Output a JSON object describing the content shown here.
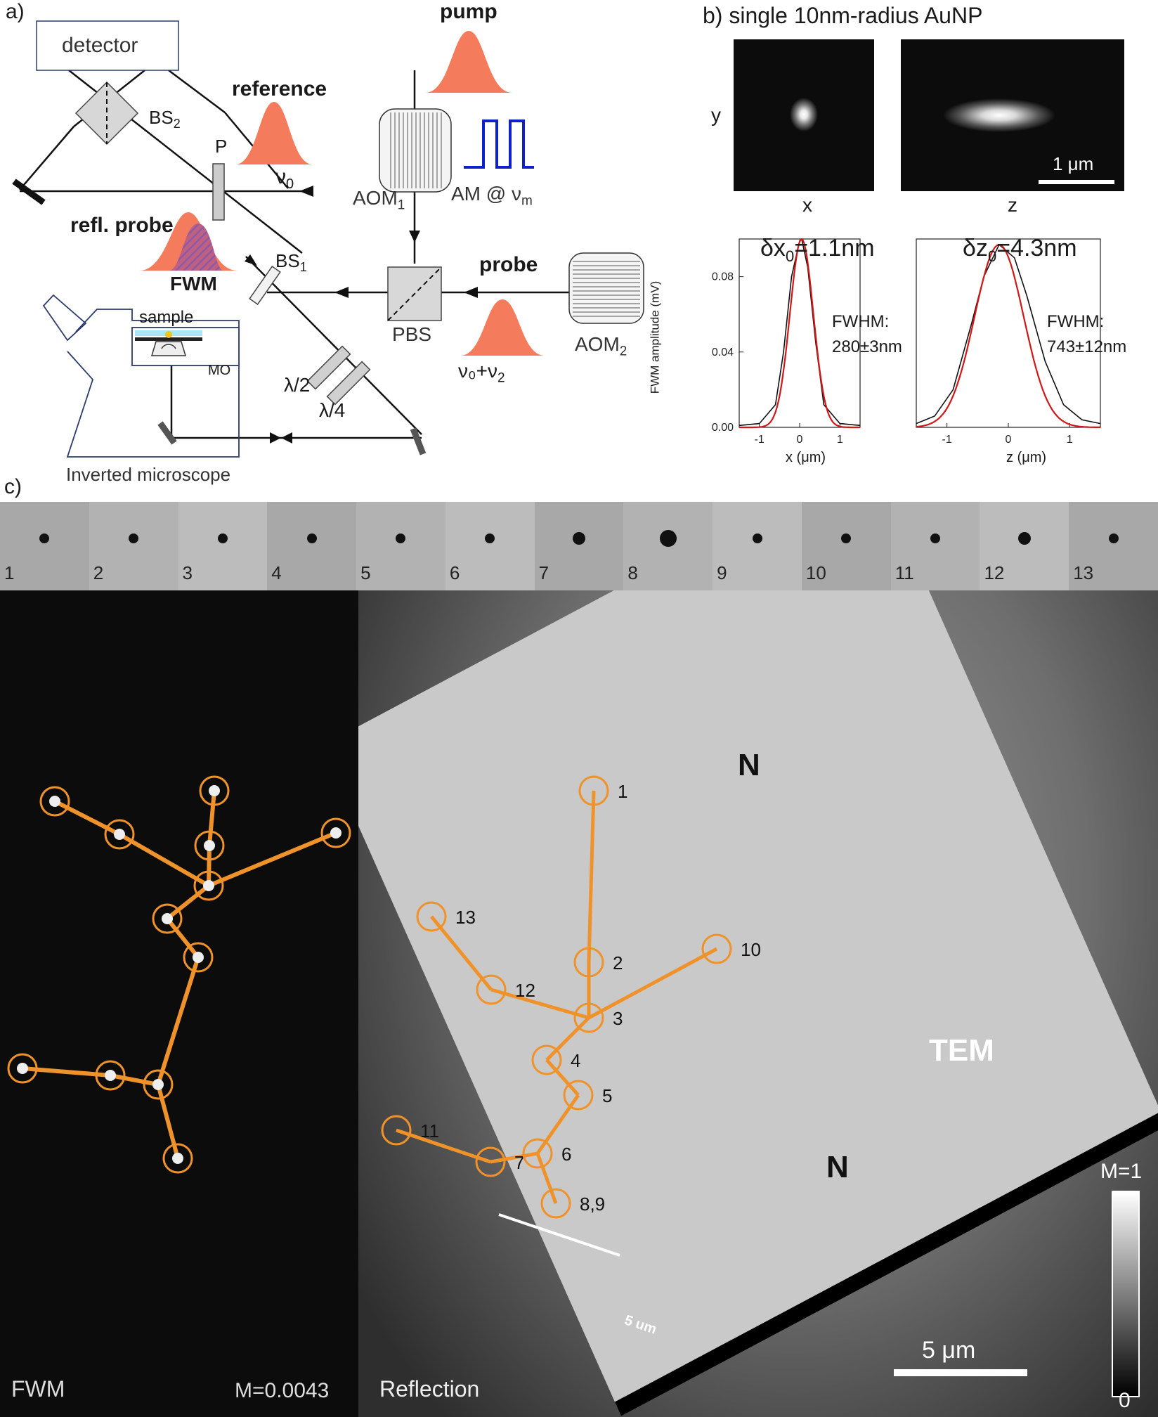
{
  "panel_a": {
    "label": "a)",
    "detector": "detector",
    "bs2": "BS",
    "bs2_sub": "2",
    "p": "P",
    "reference": "reference",
    "nu0": "ν",
    "nu0_sub": "0",
    "pump": "pump",
    "aom1": "AOM",
    "aom1_sub": "1",
    "am": "AM @ ν",
    "am_sub": "m",
    "refl_probe": "refl. probe",
    "fwm": "FWM",
    "bs1": "BS",
    "bs1_sub": "1",
    "sample": "sample",
    "mo": "MO",
    "pbs": "PBS",
    "probe": "probe",
    "nu0nu2": "ν₀+ν",
    "nu0nu2_sub": "2",
    "aom2": "AOM",
    "aom2_sub": "2",
    "half_wave": "λ/2",
    "quarter_wave": "λ/4",
    "microscope": "Inverted microscope",
    "colors": {
      "pulse": "#f47c5c",
      "am_wave": "#1020c8",
      "frame": "#2b3a6b"
    }
  },
  "panel_b": {
    "label": "b) single 10nm-radius AuNP",
    "y_axis": "y",
    "x_img_label": "x",
    "z_img_label": "z",
    "scalebar": "1 μm",
    "dx_title": "δx",
    "dx_sub": "0",
    "dx_val": "=1.1nm",
    "dz_title": "δz",
    "dz_sub": "0",
    "dz_val": "=4.3nm",
    "fwhm": "FWHM:",
    "fwhm_x": "280±3nm",
    "fwhm_z": "743±12nm",
    "ylabel": "FWM amplitude (mV)",
    "xlabel_x": "x (μm)",
    "xlabel_z": "z (μm)",
    "yticks": [
      "0.00",
      "0.04",
      "0.08"
    ],
    "xticks": [
      "-1",
      "0",
      "1"
    ]
  },
  "chart_data": [
    {
      "type": "line",
      "title": "δx0=1.1nm",
      "xlabel": "x (μm)",
      "ylabel": "FWM amplitude (mV)",
      "xlim": [
        -1.5,
        1.5
      ],
      "ylim": [
        0,
        0.1
      ],
      "series": [
        {
          "x": [
            -1.5,
            -1.0,
            -0.6,
            -0.4,
            -0.2,
            0.0,
            0.05,
            0.2,
            0.4,
            0.6,
            1.0,
            1.5
          ],
          "values": [
            0.001,
            0.002,
            0.012,
            0.04,
            0.08,
            0.099,
            0.1,
            0.085,
            0.045,
            0.012,
            0.002,
            0.001
          ]
        }
      ]
    },
    {
      "type": "line",
      "title": "δz0=4.3nm",
      "xlabel": "z (μm)",
      "ylim": [
        0,
        0.1
      ],
      "xlim": [
        -1.5,
        1.5
      ],
      "series": [
        {
          "x": [
            -1.5,
            -1.2,
            -0.9,
            -0.6,
            -0.4,
            -0.15,
            0.1,
            0.3,
            0.6,
            0.9,
            1.2,
            1.5
          ],
          "values": [
            0.002,
            0.006,
            0.02,
            0.055,
            0.08,
            0.097,
            0.09,
            0.07,
            0.035,
            0.012,
            0.004,
            0.002
          ]
        }
      ]
    }
  ],
  "panel_c": {
    "label": "c)",
    "strip_numbers": [
      "1",
      "2",
      "3",
      "4",
      "5",
      "6",
      "7",
      "8",
      "9",
      "10",
      "11",
      "12",
      "13"
    ],
    "fwm_label": "FWM",
    "m_value": "M=0.0043",
    "reflection_label": "Reflection",
    "n_label": "N",
    "tem_label": "TEM",
    "tem_scale": "5 um",
    "scalebar": "5 μm",
    "colorbar_top": "M=1",
    "colorbar_bottom": "0",
    "point_labels": [
      "1",
      "2",
      "3",
      "4",
      "5",
      "6",
      "7",
      "8,9",
      "10",
      "11",
      "12",
      "13"
    ],
    "orange": "#f0922a"
  }
}
